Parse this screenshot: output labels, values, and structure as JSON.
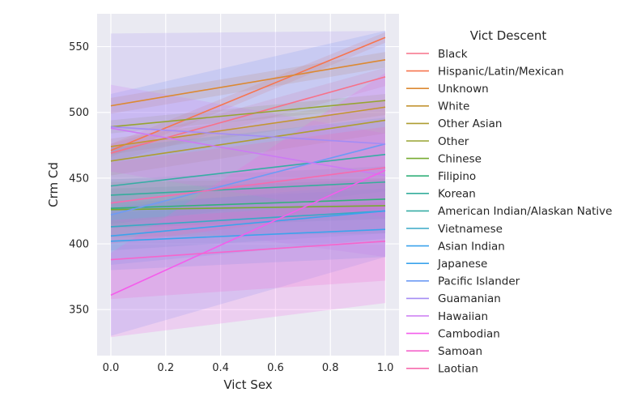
{
  "chart_data": {
    "type": "line",
    "title": "",
    "xlabel": "Vict Sex",
    "ylabel": "Crm Cd",
    "xlim": [
      -0.05,
      1.05
    ],
    "ylim": [
      315,
      575
    ],
    "xticks": [
      0.0,
      0.2,
      0.4,
      0.6,
      0.8,
      1.0
    ],
    "yticks": [
      350,
      400,
      450,
      500,
      550
    ],
    "grid": true,
    "legend": {
      "title": "Vict Descent",
      "placement": "right"
    },
    "x": [
      0,
      1
    ],
    "series": [
      {
        "name": "Black",
        "color": "#f77189",
        "values": [
          469,
          527
        ],
        "ci_low": [
          462,
          520
        ],
        "ci_high": [
          476,
          534
        ]
      },
      {
        "name": "Hispanic/Latin/Mexican",
        "color": "#f7754f",
        "values": [
          471,
          557
        ],
        "ci_low": [
          466,
          553
        ],
        "ci_high": [
          476,
          561
        ]
      },
      {
        "name": "Unknown",
        "color": "#dc8932",
        "values": [
          505,
          540
        ],
        "ci_low": [
          499,
          534
        ],
        "ci_high": [
          511,
          546
        ]
      },
      {
        "name": "White",
        "color": "#c39532",
        "values": [
          474,
          504
        ],
        "ci_low": [
          468,
          498
        ],
        "ci_high": [
          480,
          510
        ]
      },
      {
        "name": "Other Asian",
        "color": "#ae9d31",
        "values": [
          463,
          494
        ],
        "ci_low": [
          452,
          484
        ],
        "ci_high": [
          474,
          504
        ]
      },
      {
        "name": "Other",
        "color": "#97a431",
        "values": [
          489,
          509
        ],
        "ci_low": [
          484,
          504
        ],
        "ci_high": [
          494,
          514
        ]
      },
      {
        "name": "Chinese",
        "color": "#77ab31",
        "values": [
          426,
          429
        ],
        "ci_low": [
          405,
          408
        ],
        "ci_high": [
          447,
          450
        ]
      },
      {
        "name": "Filipino",
        "color": "#33b07a",
        "values": [
          427,
          434
        ],
        "ci_low": [
          412,
          419
        ],
        "ci_high": [
          442,
          449
        ]
      },
      {
        "name": "Korean",
        "color": "#35ad9c",
        "values": [
          437,
          447
        ],
        "ci_low": [
          425,
          435
        ],
        "ci_high": [
          449,
          459
        ]
      },
      {
        "name": "American Indian/Alaskan Native",
        "color": "#36ada4",
        "values": [
          444,
          468
        ],
        "ci_low": [
          415,
          440
        ],
        "ci_high": [
          473,
          496
        ]
      },
      {
        "name": "Vietnamese",
        "color": "#38a9c5",
        "values": [
          413,
          425
        ],
        "ci_low": [
          395,
          408
        ],
        "ci_high": [
          431,
          442
        ]
      },
      {
        "name": "Asian Indian",
        "color": "#3ba3ec",
        "values": [
          402,
          411
        ],
        "ci_low": [
          380,
          390
        ],
        "ci_high": [
          424,
          432
        ]
      },
      {
        "name": "Japanese",
        "color": "#3ba3ec",
        "values": [
          406,
          425
        ],
        "ci_low": [
          384,
          404
        ],
        "ci_high": [
          428,
          446
        ]
      },
      {
        "name": "Pacific Islander",
        "color": "#6e9bf4",
        "values": [
          422,
          476
        ],
        "ci_low": [
          330,
          390
        ],
        "ci_high": [
          514,
          562
        ]
      },
      {
        "name": "Guamanian",
        "color": "#a48cf4",
        "values": [
          489,
          476
        ],
        "ci_low": [
          418,
          390
        ],
        "ci_high": [
          560,
          562
        ]
      },
      {
        "name": "Hawaiian",
        "color": "#cc7af4",
        "values": [
          488,
          452
        ],
        "ci_low": [
          455,
          420
        ],
        "ci_high": [
          521,
          484
        ]
      },
      {
        "name": "Cambodian",
        "color": "#f45deb",
        "values": [
          361,
          456
        ],
        "ci_low": [
          329,
          355
        ],
        "ci_high": [
          393,
          530
        ]
      },
      {
        "name": "Samoan",
        "color": "#f565cc",
        "values": [
          388,
          402
        ],
        "ci_low": [
          358,
          372
        ],
        "ci_high": [
          418,
          432
        ]
      },
      {
        "name": "Laotian",
        "color": "#f66bad",
        "values": [
          431,
          458
        ],
        "ci_low": [
          400,
          427
        ],
        "ci_high": [
          462,
          489
        ]
      }
    ]
  }
}
